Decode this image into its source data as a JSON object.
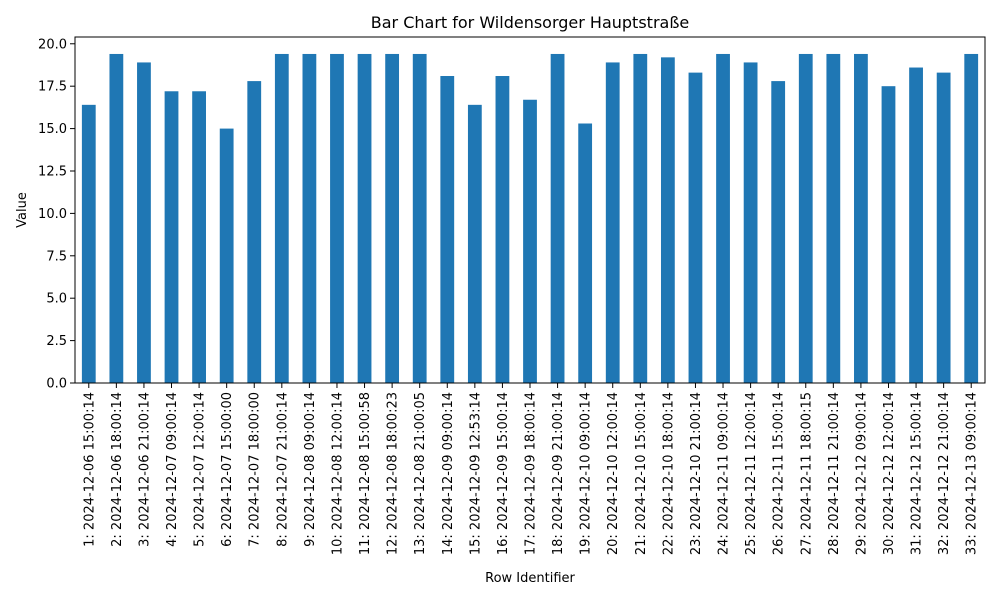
{
  "chart_data": {
    "type": "bar",
    "title": "Bar Chart for Wildensorger Hauptstraße",
    "xlabel": "Row Identifier",
    "ylabel": "Value",
    "ylim": [
      0,
      20.4
    ],
    "yticks": [
      "0.0",
      "2.5",
      "5.0",
      "7.5",
      "10.0",
      "12.5",
      "15.0",
      "17.5",
      "20.0"
    ],
    "ytick_values": [
      0,
      2.5,
      5,
      7.5,
      10,
      12.5,
      15,
      17.5,
      20
    ],
    "bar_color": "#1f77b4",
    "grid": false,
    "legend": "none",
    "categories": [
      "1: 2024-12-06 15:00:14",
      "2: 2024-12-06 18:00:14",
      "3: 2024-12-06 21:00:14",
      "4: 2024-12-07 09:00:14",
      "5: 2024-12-07 12:00:14",
      "6: 2024-12-07 15:00:00",
      "7: 2024-12-07 18:00:00",
      "8: 2024-12-07 21:00:14",
      "9: 2024-12-08 09:00:14",
      "10: 2024-12-08 12:00:14",
      "11: 2024-12-08 15:00:58",
      "12: 2024-12-08 18:00:23",
      "13: 2024-12-08 21:00:05",
      "14: 2024-12-09 09:00:14",
      "15: 2024-12-09 12:53:14",
      "16: 2024-12-09 15:00:14",
      "17: 2024-12-09 18:00:14",
      "18: 2024-12-09 21:00:14",
      "19: 2024-12-10 09:00:14",
      "20: 2024-12-10 12:00:14",
      "21: 2024-12-10 15:00:14",
      "22: 2024-12-10 18:00:14",
      "23: 2024-12-10 21:00:14",
      "24: 2024-12-11 09:00:14",
      "25: 2024-12-11 12:00:14",
      "26: 2024-12-11 15:00:14",
      "27: 2024-12-11 18:00:15",
      "28: 2024-12-11 21:00:14",
      "29: 2024-12-12 09:00:14",
      "30: 2024-12-12 12:00:14",
      "31: 2024-12-12 15:00:14",
      "32: 2024-12-12 21:00:14",
      "33: 2024-12-13 09:00:14"
    ],
    "values": [
      16.4,
      19.4,
      18.9,
      17.2,
      17.2,
      15.0,
      17.8,
      19.4,
      19.4,
      19.4,
      19.4,
      19.4,
      19.4,
      18.1,
      16.4,
      18.1,
      16.7,
      19.4,
      15.3,
      18.9,
      19.4,
      19.2,
      18.3,
      19.4,
      18.9,
      17.8,
      19.4,
      19.4,
      19.4,
      17.5,
      18.6,
      18.3,
      19.4
    ]
  }
}
